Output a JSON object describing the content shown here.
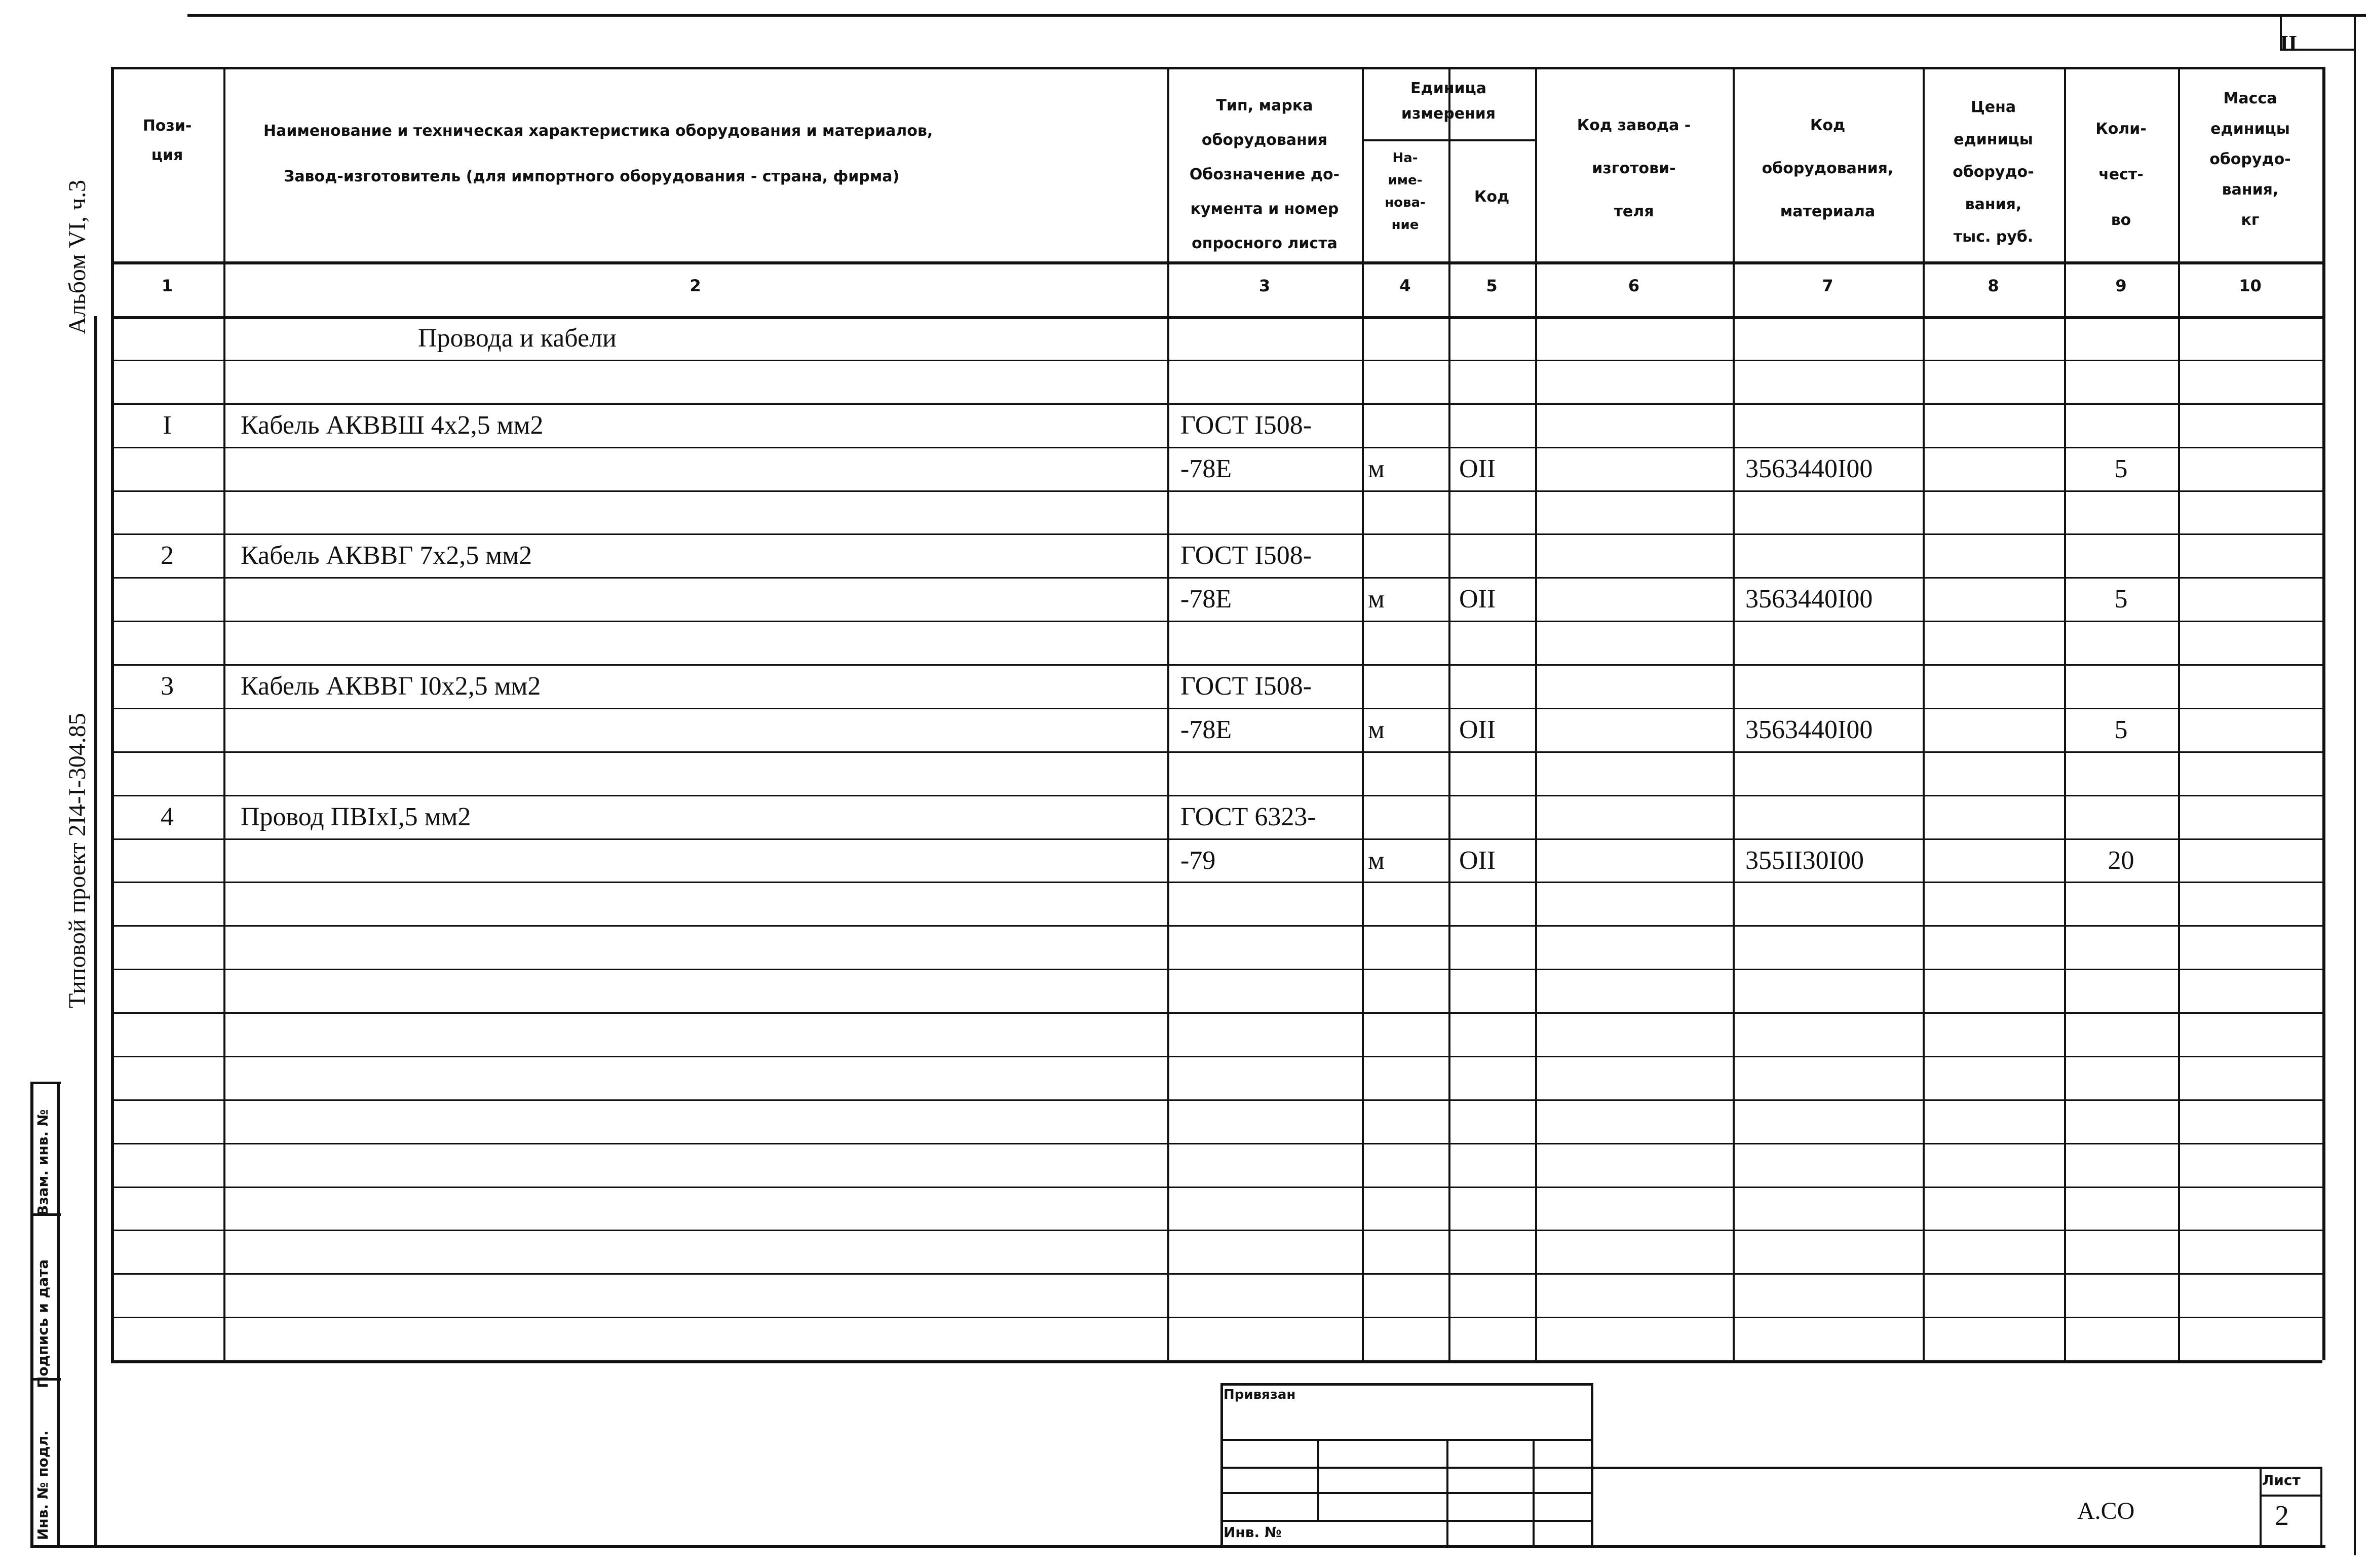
{
  "sheet_corner": "II",
  "side_labels": {
    "album": "Альбом VI, ч.3",
    "project": "Типовой проект 2I4-I-304.85"
  },
  "margin_stamp": [
    "Взам. инв. №",
    "Подпись и дата",
    "Инв. № подл."
  ],
  "header": {
    "col1": "Пози-\nция",
    "col2a": "Наименование и техническая характеристика оборудования и материалов,",
    "col2b": "Завод-изготовитель (для импортного оборудования - страна, фирма)",
    "col3": "Тип, марка\nоборудования\nОбозначение до-\nкумента и номер\nопросного листа",
    "units": "Единица\nизмерения",
    "col4": "На-\nиме-\nнова-\nние",
    "col5": "Код",
    "col6": "Код завода -\nизготови-\nтеля",
    "col7": "Код\nоборудования,\nматериала",
    "col8": "Цена\nединицы\nоборудо-\nвания,\nтыс. руб.",
    "col9": "Коли-\nчест-\nво",
    "col10": "Масса\nединицы\nоборудо-\nвания,\nкг",
    "numbers": [
      "1",
      "2",
      "3",
      "4",
      "5",
      "6",
      "7",
      "8",
      "9",
      "10"
    ]
  },
  "section_title": "Провода и кабели",
  "items": [
    {
      "pos": "I",
      "name": "Кабель АКВВШ 4х2,5 мм2",
      "doc1": "ГОСТ I508-",
      "doc2": "-78Е",
      "unit": "м",
      "unit_code": "ОII",
      "code": "3563440I00",
      "qty": "5"
    },
    {
      "pos": "2",
      "name": "Кабель АКВВГ 7х2,5 мм2",
      "doc1": "ГОСТ I508-",
      "doc2": "-78Е",
      "unit": "м",
      "unit_code": "ОII",
      "code": "3563440I00",
      "qty": "5"
    },
    {
      "pos": "3",
      "name": "Кабель АКВВГ I0х2,5 мм2",
      "doc1": "ГОСТ I508-",
      "doc2": "-78Е",
      "unit": "м",
      "unit_code": "ОII",
      "code": "3563440I00",
      "qty": "5"
    },
    {
      "pos": "4",
      "name": "Провод ПВIхI,5 мм2",
      "doc1": "ГОСТ 6323-",
      "doc2": "-79",
      "unit": "м",
      "unit_code": "ОII",
      "code": "355II30I00",
      "qty": "20"
    }
  ],
  "stamp": {
    "privyazan": "Привязан",
    "inv": "Инв. №",
    "doc_code": "А.СО",
    "sheet_label": "Лист",
    "sheet_no": "2"
  }
}
